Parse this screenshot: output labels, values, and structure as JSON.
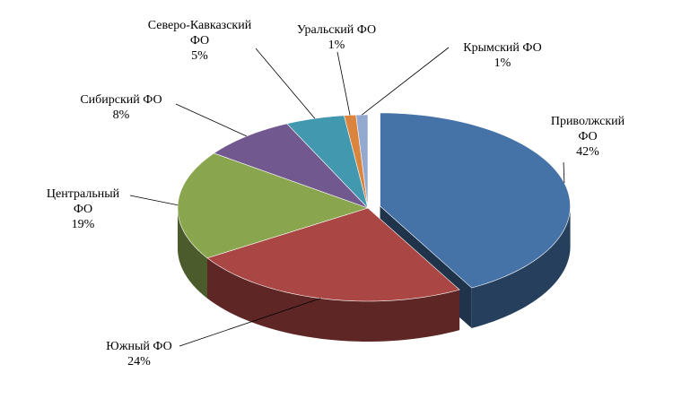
{
  "chart_data": {
    "type": "pie3d",
    "categories": [
      "Приволжский ФО",
      "Южный ФО",
      "Центральный ФО",
      "Сибирский ФО",
      "Северо-Кавказский ФО",
      "Уральский ФО",
      "Крымский ФО"
    ],
    "values": [
      42,
      24,
      19,
      8,
      5,
      1,
      1
    ],
    "value_labels": [
      "42%",
      "24%",
      "19%",
      "8%",
      "5%",
      "1%",
      "1%"
    ],
    "colors": [
      "#4572a7",
      "#aa4643",
      "#89a54e",
      "#71588f",
      "#4198af",
      "#db843d",
      "#93a9cf"
    ]
  }
}
